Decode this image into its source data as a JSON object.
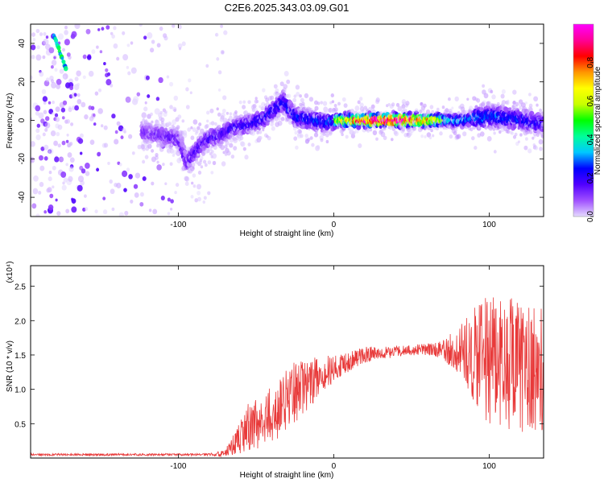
{
  "title": "C2E6.2025.343.03.09.G01",
  "chart_data": [
    {
      "type": "heatmap",
      "xlabel": "Height of straight line (km)",
      "ylabel": "Frequency (Hz)",
      "xlim": [
        -195,
        135
      ],
      "ylim": [
        -50,
        50
      ],
      "x_ticks": [
        -100,
        0,
        100
      ],
      "y_ticks": [
        -40,
        -20,
        0,
        20,
        40
      ],
      "colorbar": {
        "label": "Normalized spectral amplitude",
        "range": [
          0,
          1
        ],
        "ticks": [
          "0.0",
          "0.2",
          "0.4",
          "0.6",
          "0.8"
        ],
        "tick_values": [
          0.0,
          0.2,
          0.4,
          0.6,
          0.8
        ],
        "colors": [
          "#e6dcff",
          "#a050ff",
          "#5000ff",
          "#0000ff",
          "#00c8ff",
          "#00ff9a",
          "#00ff00",
          "#c8ff00",
          "#ffff00",
          "#ff9600",
          "#ff0000",
          "#ff0096",
          "#ff00ff"
        ]
      },
      "ridge": {
        "x": [
          -124,
          -110,
          -100,
          -95,
          -88,
          -82,
          -75,
          -65,
          -55,
          -45,
          -38,
          -33,
          -25,
          -15,
          -5,
          0,
          20,
          40,
          60,
          80,
          100,
          115,
          135
        ],
        "freq": [
          -6,
          -8,
          -10,
          -22,
          -15,
          -10,
          -8,
          -4,
          -2,
          1,
          6,
          10,
          2,
          0,
          -1,
          0,
          0,
          0,
          0,
          0,
          2,
          1,
          -2
        ]
      }
    },
    {
      "type": "line",
      "xlabel": "Height of straight line (km)",
      "ylabel": "SNR (10 * v/v)",
      "y_multiplier": "(x10⁴)",
      "xlim": [
        -195,
        135
      ],
      "ylim": [
        0,
        2.8
      ],
      "x_ticks": [
        -100,
        0,
        100
      ],
      "y_ticks": [
        0.5,
        1.0,
        1.5,
        2.0,
        2.5
      ],
      "y_tick_labels": [
        "0.5",
        "1.0",
        "1.5",
        "2.0",
        "2.5"
      ],
      "series": [
        {
          "name": "SNR",
          "color": "#e83a3a",
          "envelope": {
            "x": [
              -195,
              -150,
              -80,
              -70,
              -62,
              -55,
              -45,
              -35,
              -25,
              -15,
              -5,
              5,
              20,
              40,
              55,
              70,
              85,
              95,
              110,
              120,
              135
            ],
            "mean": [
              0.05,
              0.05,
              0.05,
              0.07,
              0.25,
              0.45,
              0.55,
              0.75,
              0.95,
              1.1,
              1.25,
              1.35,
              1.5,
              1.55,
              1.58,
              1.58,
              1.55,
              1.45,
              1.35,
              1.3,
              1.3
            ],
            "spread": [
              0.02,
              0.02,
              0.02,
              0.05,
              0.2,
              0.35,
              0.4,
              0.45,
              0.45,
              0.35,
              0.25,
              0.15,
              0.12,
              0.08,
              0.08,
              0.12,
              0.5,
              0.9,
              1.0,
              1.0,
              0.9
            ]
          }
        }
      ]
    }
  ]
}
